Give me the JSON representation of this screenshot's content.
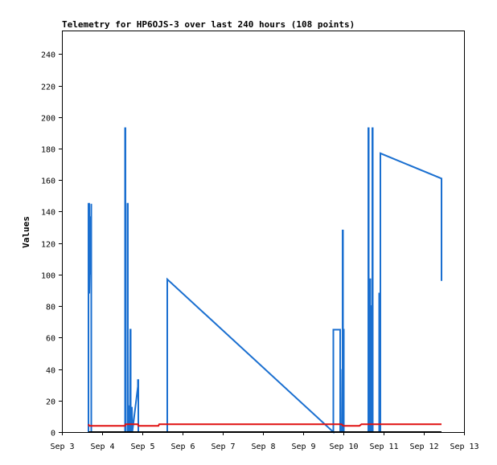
{
  "chart_data": {
    "type": "line",
    "title": "Telemetry for HP6OJS-3 over last 240 hours (108 points)",
    "xlabel": "",
    "ylabel": "Values",
    "xlim": [
      0,
      10
    ],
    "ylim": [
      0,
      255
    ],
    "x_ticks": [
      {
        "x": 0,
        "label": "Sep 3"
      },
      {
        "x": 1,
        "label": "Sep 4"
      },
      {
        "x": 2,
        "label": "Sep 5"
      },
      {
        "x": 3,
        "label": "Sep 6"
      },
      {
        "x": 4,
        "label": "Sep 7"
      },
      {
        "x": 5,
        "label": "Sep 8"
      },
      {
        "x": 6,
        "label": "Sep 9"
      },
      {
        "x": 7,
        "label": "Sep 10"
      },
      {
        "x": 8,
        "label": "Sep 11"
      },
      {
        "x": 9,
        "label": "Sep 12"
      },
      {
        "x": 10,
        "label": "Sep 13"
      }
    ],
    "y_ticks": [
      0,
      20,
      40,
      60,
      80,
      100,
      120,
      140,
      160,
      180,
      200,
      220,
      240
    ],
    "grid": false,
    "series": [
      {
        "color": "#1a6fd0",
        "points": [
          [
            0.66,
            0
          ],
          [
            0.66,
            145
          ],
          [
            0.68,
            145
          ],
          [
            0.68,
            88
          ],
          [
            0.7,
            120
          ],
          [
            0.7,
            105
          ],
          [
            0.72,
            137
          ],
          [
            0.72,
            100
          ],
          [
            0.73,
            145
          ],
          [
            0.73,
            0
          ],
          [
            1.57,
            0
          ],
          [
            1.57,
            193
          ],
          [
            1.58,
            193
          ],
          [
            1.58,
            0
          ],
          [
            1.63,
            0
          ],
          [
            1.63,
            145
          ],
          [
            1.64,
            145
          ],
          [
            1.64,
            0
          ],
          [
            1.68,
            0
          ],
          [
            1.68,
            17
          ],
          [
            1.69,
            0
          ],
          [
            1.7,
            65
          ],
          [
            1.71,
            65
          ],
          [
            1.71,
            0
          ],
          [
            1.74,
            0
          ],
          [
            1.74,
            16
          ],
          [
            1.75,
            0
          ],
          [
            1.89,
            29
          ],
          [
            1.89,
            33
          ],
          [
            1.9,
            33
          ],
          [
            1.9,
            0
          ],
          [
            2.62,
            0
          ],
          [
            2.62,
            97
          ],
          [
            6.75,
            0
          ],
          [
            6.75,
            65
          ],
          [
            6.92,
            65
          ],
          [
            6.92,
            0
          ],
          [
            6.93,
            40
          ],
          [
            6.94,
            0
          ],
          [
            6.98,
            0
          ],
          [
            6.98,
            128
          ],
          [
            6.99,
            128
          ],
          [
            6.99,
            0
          ],
          [
            7.0,
            65
          ],
          [
            7.01,
            65
          ],
          [
            7.01,
            0
          ],
          [
            7.62,
            0
          ],
          [
            7.62,
            193
          ],
          [
            7.63,
            193
          ],
          [
            7.63,
            0
          ],
          [
            7.65,
            0
          ],
          [
            7.65,
            97
          ],
          [
            7.67,
            97
          ],
          [
            7.67,
            0
          ],
          [
            7.7,
            0
          ],
          [
            7.7,
            80
          ],
          [
            7.71,
            80
          ],
          [
            7.71,
            0
          ],
          [
            7.72,
            0
          ],
          [
            7.72,
            193
          ],
          [
            7.73,
            193
          ],
          [
            7.73,
            0
          ],
          [
            7.89,
            0
          ],
          [
            7.89,
            88
          ],
          [
            7.9,
            88
          ],
          [
            7.9,
            0
          ],
          [
            7.92,
            0
          ],
          [
            7.92,
            177
          ],
          [
            9.44,
            161
          ],
          [
            9.44,
            96
          ]
        ]
      },
      {
        "color": "#e01010",
        "points": [
          [
            0.66,
            5
          ],
          [
            0.68,
            4
          ],
          [
            1.57,
            4
          ],
          [
            1.58,
            5
          ],
          [
            1.89,
            5
          ],
          [
            1.9,
            4
          ],
          [
            2.4,
            4
          ],
          [
            2.42,
            5
          ],
          [
            6.95,
            5
          ],
          [
            7.0,
            4
          ],
          [
            7.4,
            4
          ],
          [
            7.45,
            5
          ],
          [
            9.44,
            5
          ]
        ]
      },
      {
        "color": "#000000",
        "points": [
          [
            0.66,
            0
          ],
          [
            9.44,
            0
          ]
        ]
      }
    ]
  }
}
